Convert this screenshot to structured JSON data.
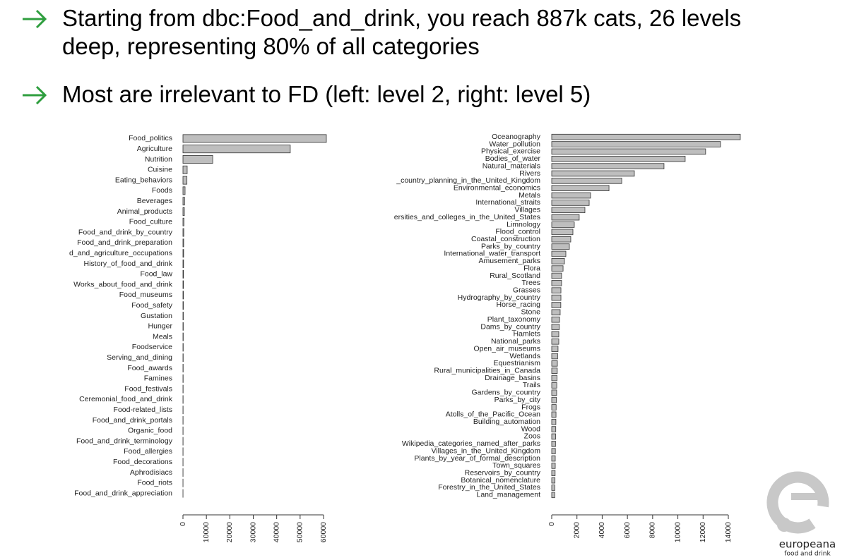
{
  "bullets": [
    "Starting from dbc:Food_and_drink, you reach 887k cats, 26 levels deep, representing 80% of all categories",
    "Most are irrelevant to FD (left: level 2, right: level 5)"
  ],
  "logo": {
    "name": "europeana",
    "tagline": "food and drink"
  },
  "chart_data": [
    {
      "type": "barh",
      "color": "#bebebe",
      "categories": [
        "Food_politics",
        "Agriculture",
        "Nutrition",
        "Cuisine",
        "Eating_behaviors",
        "Foods",
        "Beverages",
        "Animal_products",
        "Food_culture",
        "Food_and_drink_by_country",
        "Food_and_drink_preparation",
        "d_and_agriculture_occupations",
        "History_of_food_and_drink",
        "Food_law",
        "Works_about_food_and_drink",
        "Food_museums",
        "Food_safety",
        "Gustation",
        "Hunger",
        "Meals",
        "Foodservice",
        "Serving_and_dining",
        "Food_awards",
        "Famines",
        "Food_festivals",
        "Ceremonial_food_and_drink",
        "Food-related_lists",
        "Food_and_drink_portals",
        "Organic_food",
        "Food_and_drink_terminology",
        "Food_allergies",
        "Food_decorations",
        "Aphrodisiacs",
        "Food_riots",
        "Food_and_drink_appreciation"
      ],
      "values": [
        61200,
        45800,
        12700,
        1800,
        1700,
        900,
        700,
        600,
        400,
        350,
        300,
        280,
        250,
        220,
        200,
        180,
        160,
        150,
        130,
        120,
        110,
        100,
        90,
        80,
        70,
        60,
        55,
        50,
        45,
        40,
        35,
        30,
        25,
        20,
        15
      ],
      "xlim": [
        0,
        60000
      ],
      "xticks": [
        0,
        10000,
        20000,
        30000,
        40000,
        50000,
        60000
      ]
    },
    {
      "type": "barh",
      "color": "#bebebe",
      "categories": [
        "Oceanography",
        "Water_pollution",
        "Physical_exercise",
        "Bodies_of_water",
        "Natural_materials",
        "Rivers",
        "_country_planning_in_the_United_Kingdom",
        "Environmental_economics",
        "Metals",
        "International_straits",
        "Villages",
        "ersities_and_colleges_in_the_United_States",
        "Limnology",
        "Flood_control",
        "Coastal_construction",
        "Parks_by_country",
        "International_water_transport",
        "Amusement_parks",
        "Flora",
        "Rural_Scotland",
        "Trees",
        "Grasses",
        "Hydrography_by_country",
        "Horse_racing",
        "Stone",
        "Plant_taxonomy",
        "Dams_by_country",
        "Hamlets",
        "National_parks",
        "Open_air_museums",
        "Wetlands",
        "Equestrianism",
        "Rural_municipalities_in_Canada",
        "Drainage_basins",
        "Trails",
        "Gardens_by_country",
        "Parks_by_city",
        "Frogs",
        "Atolls_of_the_Pacific_Ocean",
        "Building_automation",
        "Wood",
        "Zoos",
        "Wikipedia_categories_named_after_parks",
        "Villages_in_the_United_Kingdom",
        "Plants_by_year_of_formal_description",
        "Town_squares",
        "Reservoirs_by_country",
        "Botanical_nomenclature",
        "Forestry_in_the_United_States",
        "Land_management"
      ],
      "values": [
        14950,
        13380,
        12200,
        10580,
        8900,
        6550,
        5550,
        4540,
        3080,
        2970,
        2630,
        2180,
        1790,
        1680,
        1510,
        1400,
        1120,
        1010,
        900,
        780,
        780,
        730,
        730,
        720,
        670,
        620,
        600,
        560,
        560,
        500,
        470,
        450,
        440,
        420,
        400,
        390,
        370,
        350,
        340,
        330,
        320,
        310,
        300,
        290,
        280,
        280,
        270,
        260,
        250,
        240
      ],
      "xlim": [
        0,
        14000
      ],
      "xticks": [
        0,
        2000,
        4000,
        6000,
        8000,
        10000,
        12000,
        14000
      ]
    }
  ]
}
